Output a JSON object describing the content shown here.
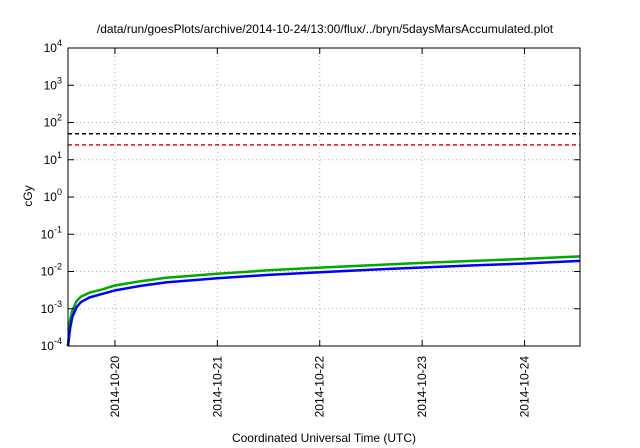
{
  "chart_data": {
    "type": "line",
    "title": "/data/run/goesPlots/archive/2014-10-24/13:00/flux/../bryn/5daysMarsAccumulated.plot",
    "xlabel": "Coordinated Universal Time (UTC)",
    "ylabel": "cGy",
    "y_scale": "log",
    "ylim": [
      0.0001,
      10000
    ],
    "y_ticks": [
      {
        "base": "10",
        "exp": "-4",
        "value": 0.0001
      },
      {
        "base": "10",
        "exp": "-3",
        "value": 0.001
      },
      {
        "base": "10",
        "exp": "-2",
        "value": 0.01
      },
      {
        "base": "10",
        "exp": "-1",
        "value": 0.1
      },
      {
        "base": "10",
        "exp": "0",
        "value": 1
      },
      {
        "base": "10",
        "exp": "1",
        "value": 10
      },
      {
        "base": "10",
        "exp": "2",
        "value": 100
      },
      {
        "base": "10",
        "exp": "3",
        "value": 1000
      },
      {
        "base": "10",
        "exp": "4",
        "value": 10000
      }
    ],
    "xlim": [
      "2014-10-19T13:00",
      "2014-10-24T13:00"
    ],
    "x_ticks": [
      "2014-10-20",
      "2014-10-21",
      "2014-10-22",
      "2014-10-23",
      "2014-10-24"
    ],
    "grid": true,
    "reference_lines": [
      {
        "y": 50,
        "color": "#000000",
        "style": "dashed"
      },
      {
        "y": 25,
        "color": "#ff0000",
        "style": "dashed"
      }
    ],
    "series": [
      {
        "color": "#00aa00",
        "x": [
          "2014-10-19T13:00",
          "2014-10-19T13:30",
          "2014-10-19T14:00",
          "2014-10-19T15:00",
          "2014-10-19T16:00",
          "2014-10-19T18:00",
          "2014-10-19T21:00",
          "2014-10-20T00:00",
          "2014-10-20T06:00",
          "2014-10-20T12:00",
          "2014-10-21T00:00",
          "2014-10-21T12:00",
          "2014-10-22T00:00",
          "2014-10-22T12:00",
          "2014-10-23T00:00",
          "2014-10-23T12:00",
          "2014-10-24T00:00",
          "2014-10-24T13:00"
        ],
        "values": [
          0.0001,
          0.0005,
          0.0009,
          0.0016,
          0.0021,
          0.0027,
          0.0033,
          0.0042,
          0.0055,
          0.0068,
          0.0087,
          0.0108,
          0.0127,
          0.0148,
          0.017,
          0.0193,
          0.0218,
          0.0255
        ]
      },
      {
        "color": "#0000ff",
        "x": [
          "2014-10-19T13:00",
          "2014-10-19T13:30",
          "2014-10-19T14:00",
          "2014-10-19T15:00",
          "2014-10-19T16:00",
          "2014-10-19T18:00",
          "2014-10-19T21:00",
          "2014-10-20T00:00",
          "2014-10-20T06:00",
          "2014-10-20T12:00",
          "2014-10-21T00:00",
          "2014-10-21T12:00",
          "2014-10-22T00:00",
          "2014-10-22T12:00",
          "2014-10-23T00:00",
          "2014-10-23T12:00",
          "2014-10-24T00:00",
          "2014-10-24T13:00"
        ],
        "values": [
          0.0001,
          0.0003,
          0.0006,
          0.0011,
          0.0015,
          0.002,
          0.0025,
          0.0031,
          0.0041,
          0.0051,
          0.0066,
          0.0081,
          0.0096,
          0.0112,
          0.0128,
          0.0146,
          0.0164,
          0.0192
        ]
      }
    ]
  }
}
